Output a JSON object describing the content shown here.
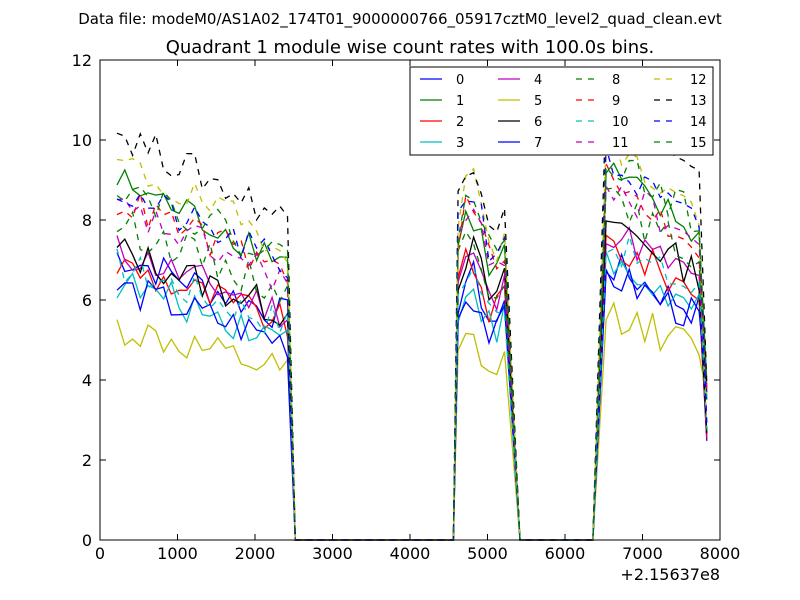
{
  "chart_data": {
    "type": "line",
    "suptitle": "Data file: modeM0/AS1A02_174T01_9000000766_05917cztM0_level2_quad_clean.evt",
    "title": "Quadrant 1 module wise count rates with 100.0s bins.",
    "xlabel": "",
    "ylabel": "",
    "x_offset_label": "+2.15637e8",
    "xlim": [
      0,
      8000
    ],
    "ylim": [
      0,
      12
    ],
    "xticks": [
      "0",
      "1000",
      "2000",
      "3000",
      "4000",
      "5000",
      "6000",
      "7000",
      "8000"
    ],
    "yticks": [
      "0",
      "2",
      "4",
      "6",
      "8",
      "10",
      "12"
    ],
    "legend_position": "top-right",
    "segments": [
      {
        "start": 220,
        "end": 2420,
        "step": 100,
        "rise": 2430,
        "fall": 2520
      },
      {
        "start": 4620,
        "end": 5220,
        "step": 100,
        "rise": 4560,
        "fall": 5420
      },
      {
        "start": 6530,
        "end": 7730,
        "step": 100,
        "rise": 6360,
        "fall": 7830
      }
    ],
    "series": [
      {
        "name": "0",
        "color": "#0000ff",
        "dash": "solid",
        "levels": [
          6.2,
          6.0,
          6.0
        ]
      },
      {
        "name": "1",
        "color": "#008000",
        "dash": "solid",
        "levels": [
          7.8,
          7.4,
          8.0
        ]
      },
      {
        "name": "2",
        "color": "#ff0000",
        "dash": "solid",
        "levels": [
          6.0,
          6.3,
          6.5
        ]
      },
      {
        "name": "3",
        "color": "#00bfbf",
        "dash": "solid",
        "levels": [
          5.6,
          5.8,
          6.0
        ]
      },
      {
        "name": "4",
        "color": "#bf00bf",
        "dash": "solid",
        "levels": [
          6.3,
          6.5,
          6.8
        ]
      },
      {
        "name": "5",
        "color": "#bfbf00",
        "dash": "solid",
        "levels": [
          4.6,
          4.5,
          5.0
        ]
      },
      {
        "name": "6",
        "color": "#000000",
        "dash": "solid",
        "levels": [
          6.3,
          6.6,
          7.0
        ]
      },
      {
        "name": "7",
        "color": "#0000ff",
        "dash": "solid",
        "levels": [
          5.5,
          5.6,
          5.8
        ]
      },
      {
        "name": "8",
        "color": "#008000",
        "dash": "dashed",
        "levels": [
          6.9,
          7.0,
          7.4
        ]
      },
      {
        "name": "9",
        "color": "#ff0000",
        "dash": "dashed",
        "levels": [
          7.4,
          7.6,
          7.8
        ]
      },
      {
        "name": "10",
        "color": "#00bfbf",
        "dash": "dashed",
        "levels": [
          6.0,
          6.2,
          6.5
        ]
      },
      {
        "name": "11",
        "color": "#bf00bf",
        "dash": "dashed",
        "levels": [
          7.2,
          7.4,
          7.8
        ]
      },
      {
        "name": "12",
        "color": "#bfbf00",
        "dash": "dashed",
        "levels": [
          8.2,
          8.2,
          8.6
        ]
      },
      {
        "name": "13",
        "color": "#000000",
        "dash": "dashed",
        "levels": [
          8.9,
          8.8,
          9.4
        ]
      },
      {
        "name": "14",
        "color": "#0000ff",
        "dash": "dashed",
        "levels": [
          7.6,
          8.0,
          8.2
        ]
      },
      {
        "name": "15",
        "color": "#008000",
        "dash": "dashed",
        "levels": [
          7.8,
          7.9,
          8.4
        ]
      }
    ]
  }
}
